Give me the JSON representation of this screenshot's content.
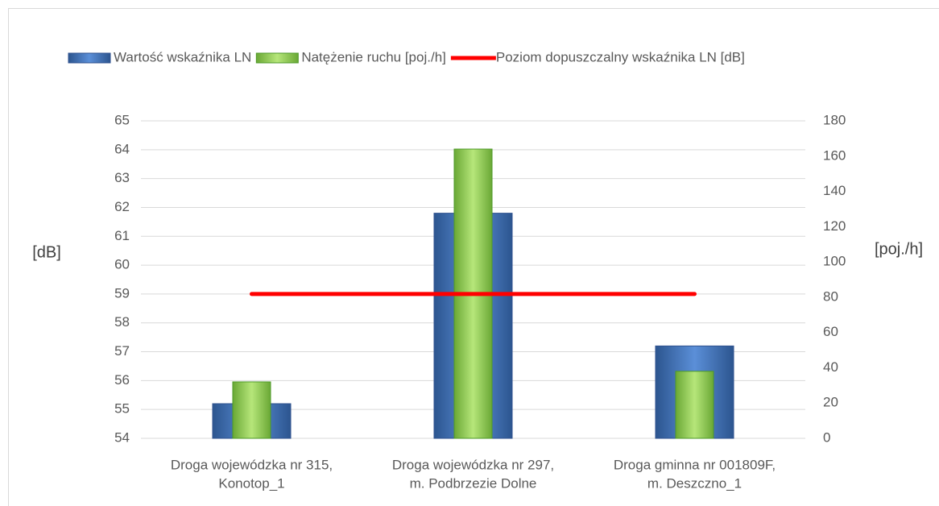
{
  "chart_data": {
    "type": "bar",
    "categories": [
      [
        "Droga wojewódzka nr 315,",
        "Konotop_1"
      ],
      [
        "Droga wojewódzka nr 297,",
        "m. Podbrzezie Dolne"
      ],
      [
        "Droga gminna nr 001809F,",
        "m. Deszczno_1"
      ]
    ],
    "series": [
      {
        "name": "Wartość wskaźnika LN",
        "type": "bar",
        "color": "#3f6fbf",
        "values": [
          55.2,
          61.8,
          57.2
        ]
      },
      {
        "name": "Natężenie ruchu [poj./h]",
        "type": "bar",
        "axis": "y2",
        "color": "#92d050",
        "values": [
          32,
          164,
          38
        ]
      },
      {
        "name": "Poziom dopuszczalny wskaźnika LN [dB]",
        "type": "line",
        "color": "#ff0000",
        "values": [
          59,
          59,
          59
        ]
      }
    ],
    "ylabel": "[dB]",
    "y2label": "[poj./h]",
    "ylim": [
      54,
      65
    ],
    "yticks": [
      54,
      55,
      56,
      57,
      58,
      59,
      60,
      61,
      62,
      63,
      64,
      65
    ],
    "y2lim": [
      0,
      180
    ],
    "y2ticks": [
      0,
      20,
      40,
      60,
      80,
      100,
      120,
      140,
      160,
      180
    ],
    "grid": true,
    "legend": "top"
  }
}
